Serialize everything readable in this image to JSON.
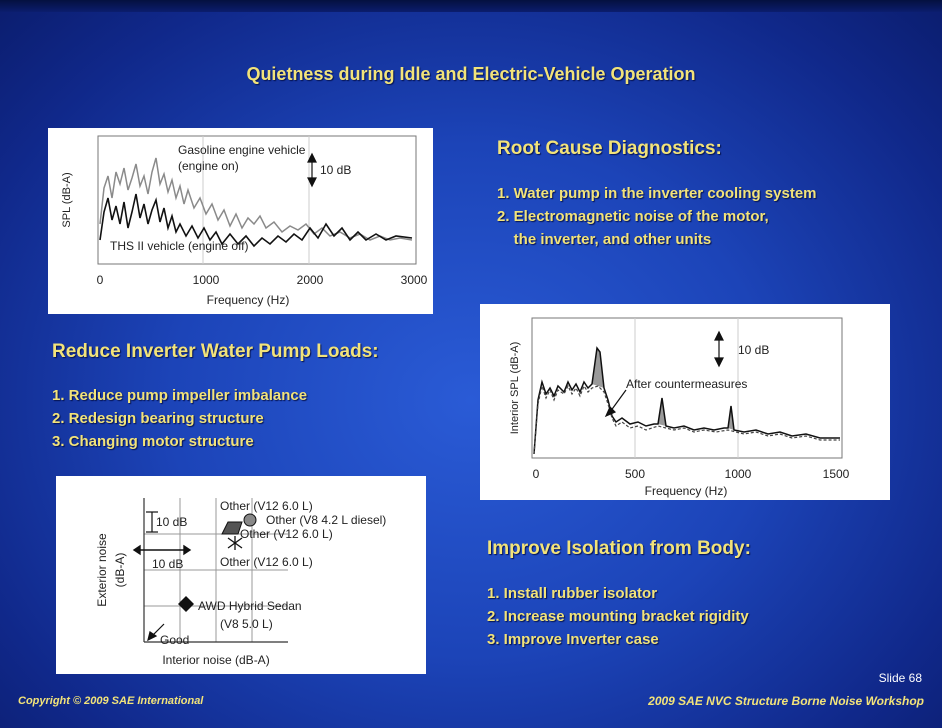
{
  "title": "Quietness during Idle and Electric-Vehicle Operation",
  "root_cause": {
    "heading": "Root Cause Diagnostics:",
    "items": [
      "1. Water pump in the inverter cooling system",
      "2. Electromagnetic noise of the motor,",
      "    the inverter, and other units"
    ]
  },
  "reduce_pump": {
    "heading": "Reduce Inverter Water Pump Loads:",
    "items": [
      "1. Reduce pump impeller imbalance",
      "2. Redesign bearing structure",
      "3. Changing motor structure"
    ]
  },
  "improve_isolation": {
    "heading": "Improve Isolation from Body:",
    "items": [
      "1. Install rubber isolator",
      "2. Increase mounting bracket rigidity",
      "3. Improve Inverter case"
    ]
  },
  "chart1": {
    "ylabel": "SPL (dB-A)",
    "xlabel": "Frequency (Hz)",
    "ticks": [
      "0",
      "1000",
      "2000",
      "3000"
    ],
    "label_gas_1": "Gasoline engine vehicle",
    "label_gas_2": "(engine on)",
    "label_ths": "THS II vehicle (engine off)",
    "scale": "10 dB"
  },
  "chart2": {
    "ylabel": "Interior SPL (dB-A)",
    "xlabel": "Frequency (Hz)",
    "ticks": [
      "0",
      "500",
      "1000",
      "1500"
    ],
    "label_after": "After countermeasures",
    "scale": "10 dB"
  },
  "chart3": {
    "ylabel_1": "Exterior noise",
    "ylabel_2": "(dB-A)",
    "xlabel": "Interior noise (dB-A)",
    "scale_v": "10 dB",
    "scale_h": "10 dB",
    "p1": "Other (V12 6.0 L)",
    "p2": "Other (V8 4.2 L diesel)",
    "p3": "Other (V12 6.0 L)",
    "p4": "Other (V12 6.0 L)",
    "p5a": "AWD Hybrid Sedan",
    "p5b": "(V8 5.0 L)",
    "good": "Good"
  },
  "footer": {
    "slide": "Slide 68",
    "left": "Copyright © 2009 SAE International",
    "right": "2009 SAE NVC Structure Borne Noise Workshop"
  },
  "colors": {
    "text_yellow": "#f2e37a",
    "background": "#1c44b8"
  }
}
